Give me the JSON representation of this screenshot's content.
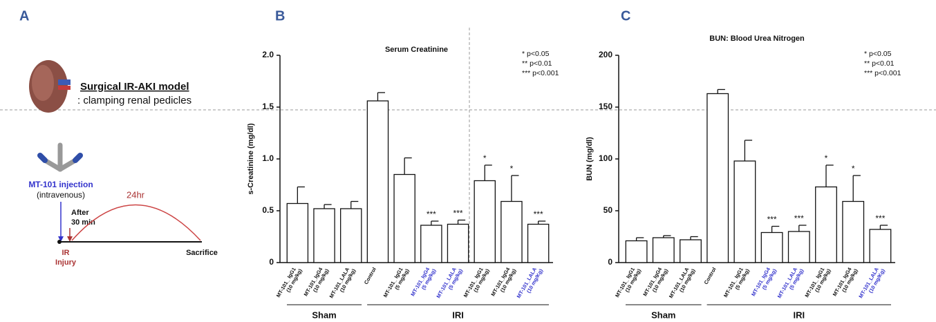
{
  "panel_labels": [
    "A",
    "B",
    "C"
  ],
  "panel_a": {
    "model_title": "Surgical IR-AKI model",
    "model_note": ": clamping renal pedicles",
    "injection": "MT-101 injection",
    "route": "(intravenous)",
    "after": "After",
    "delay": "30 min",
    "duration": "24hr",
    "ir": "IR",
    "injury": "Injury",
    "end": "Sacrifice"
  },
  "chart_data": [
    {
      "type": "bar",
      "title": "Serum Creatinine",
      "y_label": "s-Creatinine (mg/dl)",
      "categories": [
        [
          "MT-101_ IgG1",
          "(10 mg/kg)"
        ],
        [
          "MT-101_IgG4",
          "(10 mg/kg)"
        ],
        [
          "MT-101_LALA",
          "(10 mg/kg)"
        ],
        [
          "Control",
          null
        ],
        [
          "MT-101_ IgG1",
          "(5 mg/kg)"
        ],
        [
          "MT-101_IgG4",
          "(5 mg/kg)"
        ],
        [
          "MT-101_LALA",
          "(5 mg/kg)"
        ],
        [
          "MT-101_ IgG1",
          "(10 mg/kg)"
        ],
        [
          "MT-101_IgG4",
          "(10 mg/kg)"
        ],
        [
          "MT-101_LALA",
          "(10 mg/Kg)"
        ]
      ],
      "category_colors": [
        "#111111",
        "#111111",
        "#111111",
        "#111111",
        "#111111",
        "#3333cc",
        "#3333cc",
        "#111111",
        "#111111",
        "#3333cc"
      ],
      "values": [
        0.57,
        0.52,
        0.52,
        1.56,
        0.85,
        0.36,
        0.37,
        0.79,
        0.59,
        0.37
      ],
      "errors": [
        0.16,
        0.04,
        0.07,
        0.08,
        0.16,
        0.04,
        0.04,
        0.15,
        0.25,
        0.03
      ],
      "significance": [
        null,
        null,
        null,
        null,
        null,
        "***",
        "***",
        "*",
        "*",
        "***"
      ],
      "legend": [
        "* p<0.05",
        "** p<0.01",
        "*** p<0.001"
      ],
      "groups": [
        {
          "label": "Sham",
          "from": 0,
          "to": 2
        },
        {
          "label": "IRI",
          "from": 3,
          "to": 9
        }
      ],
      "color": "#ffffff",
      "ylim": [
        0,
        2.0
      ],
      "yticks": [
        0,
        0.5,
        {
          "value": 1.0,
          "label": "1.0"
        },
        1.5,
        {
          "value": 2.0,
          "label": "2.0"
        }
      ]
    },
    {
      "type": "bar",
      "title": "BUN: Blood Urea Nitrogen",
      "y_label": "BUN (mg/dl)",
      "categories": [
        [
          "MT-101_ IgG1",
          "(10 mg/kg)"
        ],
        [
          "MT-101_IgG4",
          "(10 mg/kg)"
        ],
        [
          "MT-101_LALA",
          "(10 mg/kg)"
        ],
        [
          "Control",
          null
        ],
        [
          "MT-101_ IgG1",
          "(5 mg/kg)"
        ],
        [
          "MT-101_IgG4",
          "(5 mg/kg)"
        ],
        [
          "MT-101_LALA",
          "(5 mg/kg)"
        ],
        [
          "MT-101_ IgG1",
          "(10 mg/kg)"
        ],
        [
          "MT-101_IgG4",
          "(10 mg/kg)"
        ],
        [
          "MT-101_LALA",
          "(10 mg/Kg)"
        ]
      ],
      "category_colors": [
        "#111111",
        "#111111",
        "#111111",
        "#111111",
        "#111111",
        "#3333cc",
        "#3333cc",
        "#111111",
        "#111111",
        "#3333cc"
      ],
      "values": [
        21,
        24,
        22,
        163,
        98,
        29,
        30,
        73,
        59,
        32
      ],
      "errors": [
        3,
        2,
        3,
        4,
        20,
        6,
        6,
        21,
        25,
        4
      ],
      "significance": [
        null,
        null,
        null,
        null,
        null,
        "***",
        "***",
        "*",
        "*",
        "***"
      ],
      "legend": [
        "* p<0.05",
        "** p<0.01",
        "*** p<0.001"
      ],
      "groups": [
        {
          "label": "Sham",
          "from": 0,
          "to": 2
        },
        {
          "label": "IRI",
          "from": 3,
          "to": 9
        }
      ],
      "color": "#ffffff",
      "ylim": [
        0,
        200
      ],
      "yticks": [
        0,
        50,
        100,
        150,
        200
      ]
    }
  ]
}
